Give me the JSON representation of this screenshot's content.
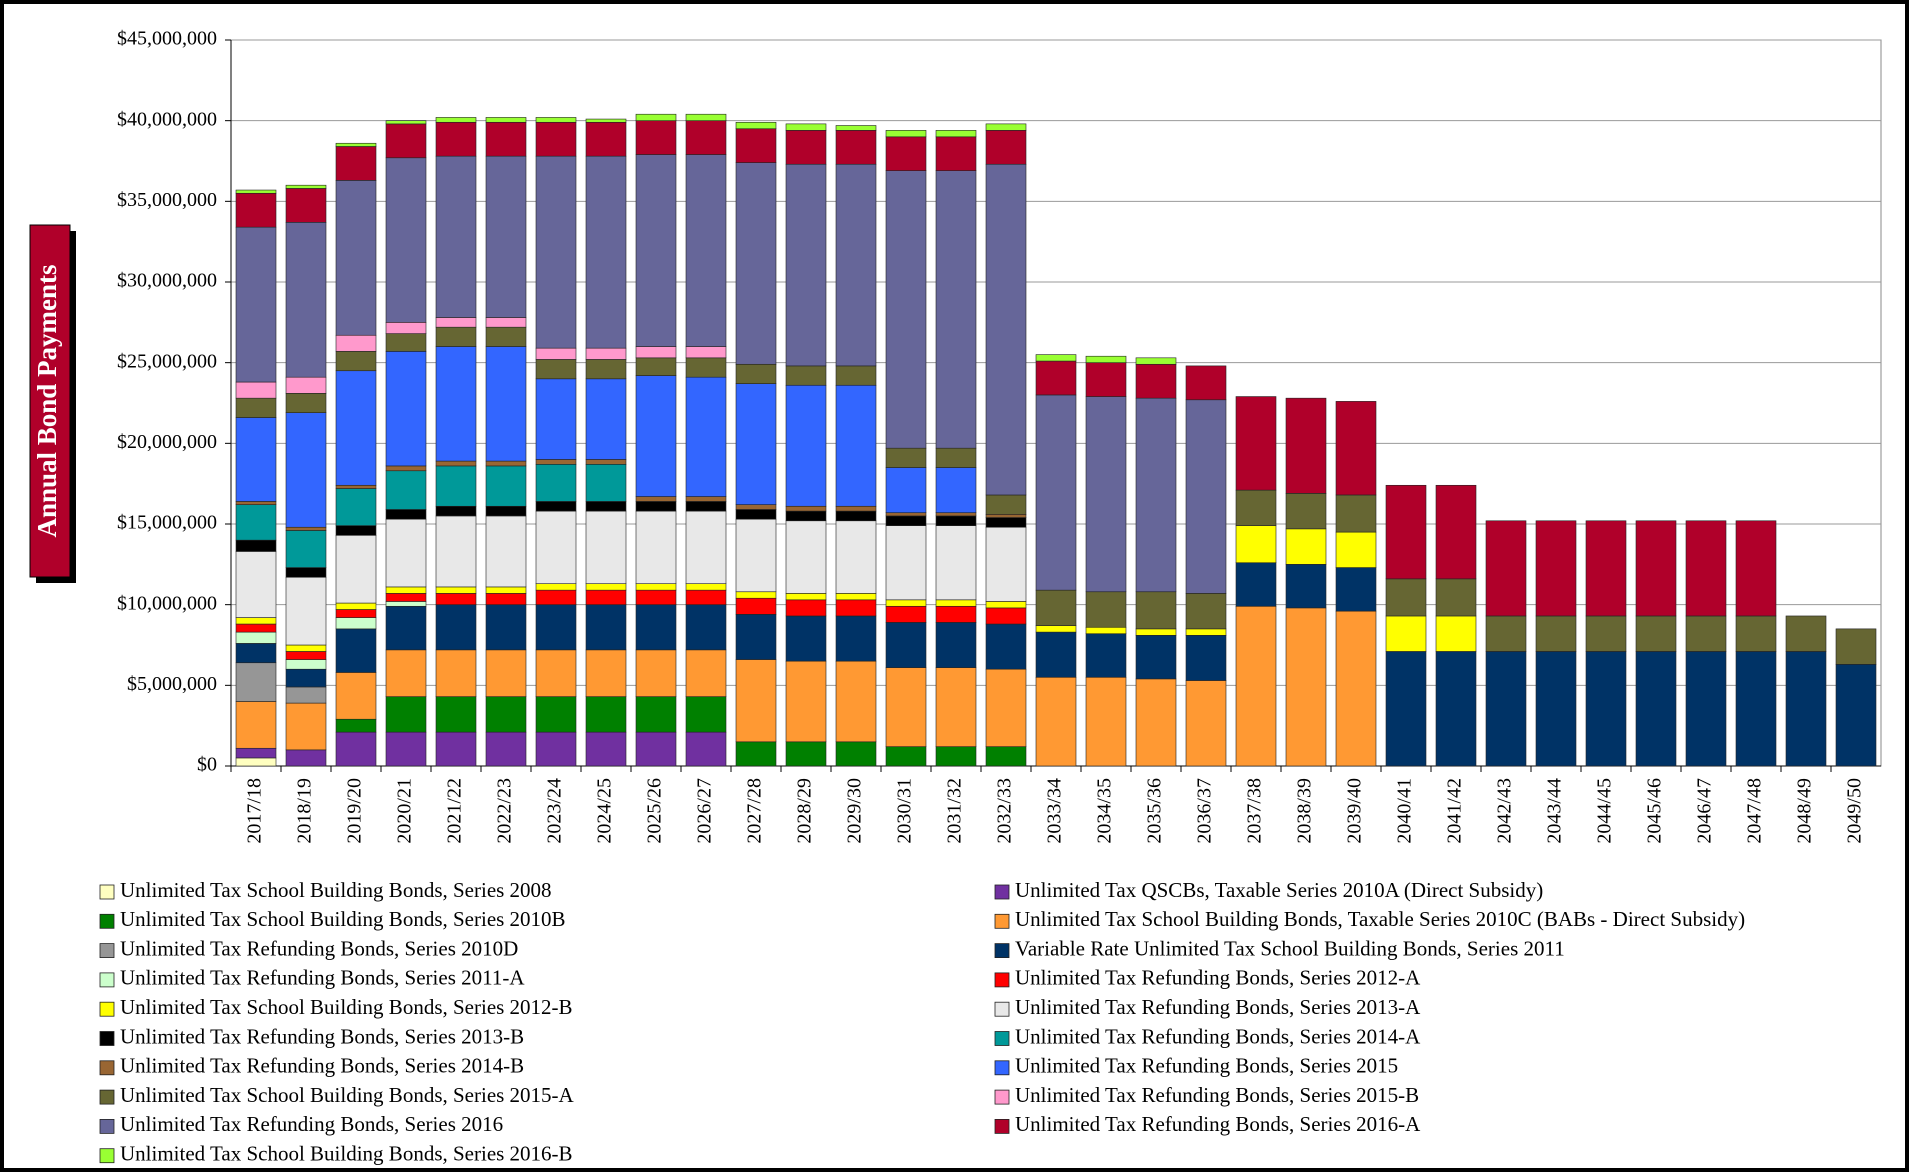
{
  "chart_data": {
    "type": "stacked_bar",
    "y_label": "Annual Bond Payments",
    "categories": [
      "2017/18",
      "2018/19",
      "2019/20",
      "2020/21",
      "2021/22",
      "2022/23",
      "2023/24",
      "2024/25",
      "2025/26",
      "2026/27",
      "2027/28",
      "2028/29",
      "2029/30",
      "2030/31",
      "2031/32",
      "2032/33",
      "2033/34",
      "2034/35",
      "2035/36",
      "2036/37",
      "2037/38",
      "2038/39",
      "2039/40",
      "2040/41",
      "2041/42",
      "2042/43",
      "2043/44",
      "2044/45",
      "2045/46",
      "2046/47",
      "2047/48",
      "2048/49",
      "2049/50"
    ],
    "ylim": [
      0,
      45000000
    ],
    "yticks": [
      {
        "value": 0,
        "label": "$0"
      },
      {
        "value": 5000000,
        "label": "$5,000,000"
      },
      {
        "value": 10000000,
        "label": "$10,000,000"
      },
      {
        "value": 15000000,
        "label": "$15,000,000"
      },
      {
        "value": 20000000,
        "label": "$20,000,000"
      },
      {
        "value": 25000000,
        "label": "$25,000,000"
      },
      {
        "value": 30000000,
        "label": "$30,000,000"
      },
      {
        "value": 35000000,
        "label": "$35,000,000"
      },
      {
        "value": 40000000,
        "label": "$40,000,000"
      },
      {
        "value": 45000000,
        "label": "$45,000,000"
      }
    ],
    "grid": true,
    "legend": "bottom",
    "series": [
      {
        "name": "Unlimited Tax School Building Bonds, Series 2008",
        "color": "#ffffc0",
        "values": [
          500000,
          0,
          0,
          0,
          0,
          0,
          0,
          0,
          0,
          0,
          0,
          0,
          0,
          0,
          0,
          0,
          0,
          0,
          0,
          0,
          0,
          0,
          0,
          0,
          0,
          0,
          0,
          0,
          0,
          0,
          0,
          0,
          0
        ]
      },
      {
        "name": "Unlimited Tax QSCBs, Taxable Series 2010A (Direct Subsidy)",
        "color": "#7030a0",
        "values": [
          600000,
          1000000,
          2100000,
          2100000,
          2100000,
          2100000,
          2100000,
          2100000,
          2100000,
          2100000,
          0,
          0,
          0,
          0,
          0,
          0,
          0,
          0,
          0,
          0,
          0,
          0,
          0,
          0,
          0,
          0,
          0,
          0,
          0,
          0,
          0,
          0,
          0
        ]
      },
      {
        "name": "Unlimited Tax School Building Bonds, Series 2010B",
        "color": "#008000",
        "values": [
          0,
          0,
          800000,
          2200000,
          2200000,
          2200000,
          2200000,
          2200000,
          2200000,
          2200000,
          1500000,
          1500000,
          1500000,
          1200000,
          1200000,
          1200000,
          0,
          0,
          0,
          0,
          0,
          0,
          0,
          0,
          0,
          0,
          0,
          0,
          0,
          0,
          0,
          0,
          0
        ]
      },
      {
        "name": "Unlimited Tax School Building Bonds, Taxable Series 2010C (BABs - Direct Subsidy)",
        "color": "#ff9933",
        "values": [
          2900000,
          2900000,
          2900000,
          2900000,
          2900000,
          2900000,
          2900000,
          2900000,
          2900000,
          2900000,
          5100000,
          5000000,
          5000000,
          4900000,
          4900000,
          4800000,
          5500000,
          5500000,
          5400000,
          5300000,
          9900000,
          9800000,
          9600000,
          0,
          0,
          0,
          0,
          0,
          0,
          0,
          0,
          0,
          0
        ]
      },
      {
        "name": "Unlimited Tax Refunding Bonds, Series 2010D",
        "color": "#969696",
        "values": [
          2400000,
          1000000,
          0,
          0,
          0,
          0,
          0,
          0,
          0,
          0,
          0,
          0,
          0,
          0,
          0,
          0,
          0,
          0,
          0,
          0,
          0,
          0,
          0,
          0,
          0,
          0,
          0,
          0,
          0,
          0,
          0,
          0,
          0
        ]
      },
      {
        "name": "Variable Rate Unlimited Tax School Building Bonds, Series 2011",
        "color": "#003366",
        "values": [
          1200000,
          1100000,
          2700000,
          2700000,
          2800000,
          2800000,
          2800000,
          2800000,
          2800000,
          2800000,
          2800000,
          2800000,
          2800000,
          2800000,
          2800000,
          2800000,
          2800000,
          2700000,
          2700000,
          2800000,
          2700000,
          2700000,
          2700000,
          7100000,
          7100000,
          7100000,
          7100000,
          7100000,
          7100000,
          7100000,
          7100000,
          7100000,
          6300000
        ]
      },
      {
        "name": "Unlimited Tax Refunding Bonds, Series 2011-A",
        "color": "#ccffcc",
        "values": [
          700000,
          600000,
          700000,
          300000,
          0,
          0,
          0,
          0,
          0,
          0,
          0,
          0,
          0,
          0,
          0,
          0,
          0,
          0,
          0,
          0,
          0,
          0,
          0,
          0,
          0,
          0,
          0,
          0,
          0,
          0,
          0,
          0,
          0
        ]
      },
      {
        "name": "Unlimited Tax Refunding Bonds, Series 2012-A",
        "color": "#ff0000",
        "values": [
          500000,
          500000,
          500000,
          500000,
          700000,
          700000,
          900000,
          900000,
          900000,
          900000,
          1000000,
          1000000,
          1000000,
          1000000,
          1000000,
          1000000,
          0,
          0,
          0,
          0,
          0,
          0,
          0,
          0,
          0,
          0,
          0,
          0,
          0,
          0,
          0,
          0,
          0
        ]
      },
      {
        "name": "Unlimited Tax School Building Bonds, Series 2012-B",
        "color": "#ffff00",
        "values": [
          400000,
          400000,
          400000,
          400000,
          400000,
          400000,
          400000,
          400000,
          400000,
          400000,
          400000,
          400000,
          400000,
          400000,
          400000,
          400000,
          400000,
          400000,
          400000,
          400000,
          2300000,
          2200000,
          2200000,
          2200000,
          2200000,
          0,
          0,
          0,
          0,
          0,
          0,
          0,
          0
        ]
      },
      {
        "name": "Unlimited Tax Refunding Bonds, Series 2013-A",
        "color": "#e8e8e8",
        "values": [
          4100000,
          4200000,
          4200000,
          4200000,
          4400000,
          4400000,
          4500000,
          4500000,
          4500000,
          4500000,
          4500000,
          4500000,
          4500000,
          4600000,
          4600000,
          4600000,
          0,
          0,
          0,
          0,
          0,
          0,
          0,
          0,
          0,
          0,
          0,
          0,
          0,
          0,
          0,
          0,
          0
        ]
      },
      {
        "name": "Unlimited Tax Refunding Bonds, Series 2013-B",
        "color": "#000000",
        "values": [
          700000,
          600000,
          600000,
          600000,
          600000,
          600000,
          600000,
          600000,
          600000,
          600000,
          600000,
          600000,
          600000,
          600000,
          600000,
          600000,
          0,
          0,
          0,
          0,
          0,
          0,
          0,
          0,
          0,
          0,
          0,
          0,
          0,
          0,
          0,
          0,
          0
        ]
      },
      {
        "name": "Unlimited Tax Refunding Bonds, Series 2014-A",
        "color": "#009999",
        "values": [
          2200000,
          2300000,
          2300000,
          2400000,
          2500000,
          2500000,
          2300000,
          2300000,
          0,
          0,
          0,
          0,
          0,
          0,
          0,
          0,
          0,
          0,
          0,
          0,
          0,
          0,
          0,
          0,
          0,
          0,
          0,
          0,
          0,
          0,
          0,
          0,
          0
        ]
      },
      {
        "name": "Unlimited Tax Refunding Bonds, Series 2014-B",
        "color": "#996633",
        "values": [
          200000,
          200000,
          200000,
          300000,
          300000,
          300000,
          300000,
          300000,
          300000,
          300000,
          300000,
          300000,
          300000,
          200000,
          200000,
          200000,
          0,
          0,
          0,
          0,
          0,
          0,
          0,
          0,
          0,
          0,
          0,
          0,
          0,
          0,
          0,
          0,
          0
        ]
      },
      {
        "name": "Unlimited Tax Refunding Bonds, Series 2015",
        "color": "#3366ff",
        "values": [
          5200000,
          7100000,
          7100000,
          7100000,
          7100000,
          7100000,
          5000000,
          5000000,
          7500000,
          7400000,
          7500000,
          7500000,
          7500000,
          2800000,
          2800000,
          0,
          0,
          0,
          0,
          0,
          0,
          0,
          0,
          0,
          0,
          0,
          0,
          0,
          0,
          0,
          0,
          0,
          0
        ]
      },
      {
        "name": "Unlimited Tax School Building Bonds, Series 2015-A",
        "color": "#666633",
        "values": [
          1200000,
          1200000,
          1200000,
          1100000,
          1200000,
          1200000,
          1200000,
          1200000,
          1100000,
          1200000,
          1200000,
          1200000,
          1200000,
          1200000,
          1200000,
          1200000,
          2200000,
          2200000,
          2300000,
          2200000,
          2200000,
          2200000,
          2300000,
          2300000,
          2300000,
          2200000,
          2200000,
          2200000,
          2200000,
          2200000,
          2200000,
          2200000,
          2200000
        ]
      },
      {
        "name": "Unlimited Tax Refunding Bonds, Series 2015-B",
        "color": "#ff99cc",
        "values": [
          1000000,
          1000000,
          1000000,
          700000,
          600000,
          600000,
          700000,
          700000,
          700000,
          700000,
          0,
          0,
          0,
          0,
          0,
          0,
          0,
          0,
          0,
          0,
          0,
          0,
          0,
          0,
          0,
          0,
          0,
          0,
          0,
          0,
          0,
          0,
          0
        ]
      },
      {
        "name": "Unlimited Tax Refunding Bonds, Series 2016",
        "color": "#666699",
        "values": [
          9600000,
          9600000,
          9600000,
          10200000,
          10000000,
          10000000,
          11900000,
          11900000,
          11900000,
          11900000,
          12500000,
          12500000,
          12500000,
          17200000,
          17200000,
          20500000,
          12100000,
          12100000,
          12000000,
          12000000,
          0,
          0,
          0,
          0,
          0,
          0,
          0,
          0,
          0,
          0,
          0,
          0,
          0
        ]
      },
      {
        "name": "Unlimited Tax Refunding Bonds, Series 2016-A",
        "color": "#b0002a",
        "values": [
          2100000,
          2100000,
          2100000,
          2100000,
          2100000,
          2100000,
          2100000,
          2100000,
          2100000,
          2100000,
          2100000,
          2100000,
          2100000,
          2100000,
          2100000,
          2100000,
          2100000,
          2100000,
          2100000,
          2100000,
          5800000,
          5900000,
          5800000,
          5800000,
          5800000,
          5900000,
          5900000,
          5900000,
          5900000,
          5900000,
          5900000,
          0,
          0
        ]
      },
      {
        "name": "Unlimited Tax School Building Bonds, Series 2016-B",
        "color": "#99ff33",
        "values": [
          200000,
          200000,
          200000,
          200000,
          300000,
          300000,
          300000,
          200000,
          400000,
          400000,
          400000,
          400000,
          300000,
          400000,
          400000,
          400000,
          400000,
          400000,
          400000,
          0,
          0,
          0,
          0,
          0,
          0,
          0,
          0,
          0,
          0,
          0,
          0,
          0,
          0
        ]
      }
    ]
  }
}
